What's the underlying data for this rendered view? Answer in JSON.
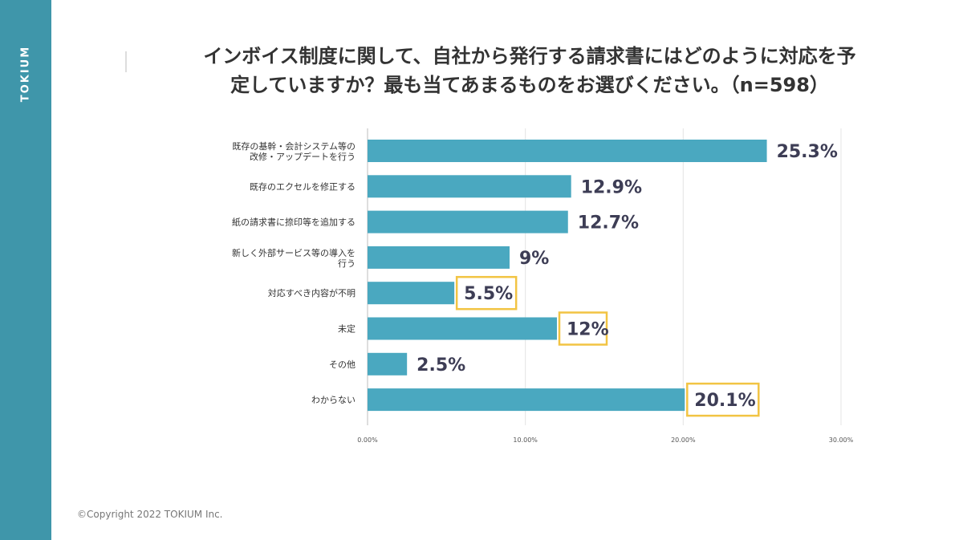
{
  "brand": "TOKIUM",
  "title": {
    "line1": "インボイス制度に関して、自社から発行する請求書にはどのように対応を予",
    "line2": "定していますか？最も当てあまるものをお選びください。（n=598）"
  },
  "copyright": "©Copyright 2022 TOKIUM Inc.",
  "colors": {
    "sidebar": "#3f96aa",
    "bar": "#4aa8c0",
    "highlight": "#f2c443",
    "value_text": "#3d3d55"
  },
  "chart_data": {
    "type": "bar",
    "orientation": "horizontal",
    "categories": [
      [
        "既存の基幹・会計システム等の",
        "改修・アップデートを行う"
      ],
      [
        "既存のエクセルを修正する"
      ],
      [
        "紙の請求書に捺印等を追加する"
      ],
      [
        "新しく外部サービス等の導入を",
        "行う"
      ],
      [
        "対応すべき内容が不明"
      ],
      [
        "未定"
      ],
      [
        "その他"
      ],
      [
        "わからない"
      ]
    ],
    "values": [
      25.3,
      12.9,
      12.7,
      9,
      5.5,
      12,
      2.5,
      20.1
    ],
    "value_labels": [
      "25.3%",
      "12.9%",
      "12.7%",
      "9%",
      "5.5%",
      "12%",
      "2.5%",
      "20.1%"
    ],
    "highlighted": [
      false,
      false,
      false,
      false,
      true,
      true,
      false,
      true
    ],
    "xlim": [
      0,
      30
    ],
    "xticks": [
      0,
      10,
      20,
      30
    ],
    "xtick_labels": [
      "0.00%",
      "10.00%",
      "20.00%",
      "30.00%"
    ],
    "grid": true,
    "legend": "none"
  }
}
